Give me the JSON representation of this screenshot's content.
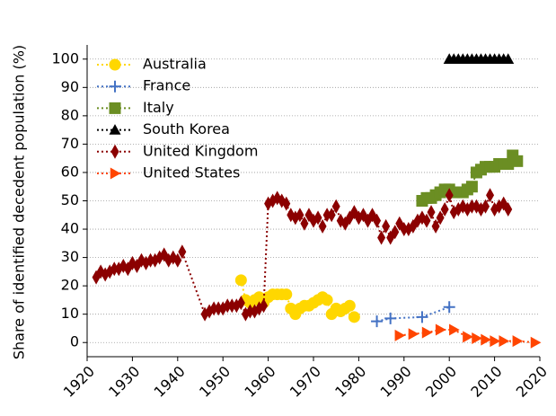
{
  "chart_data": {
    "type": "line",
    "y_label": "Share of identified decedent population (%)",
    "xlim": [
      1920,
      2020
    ],
    "ylim": [
      -5,
      105
    ],
    "xticks": [
      1920,
      1930,
      1940,
      1950,
      1960,
      1970,
      1980,
      1990,
      2000,
      2010,
      2020
    ],
    "yticks": [
      0,
      10,
      20,
      30,
      40,
      50,
      60,
      70,
      80,
      90,
      100
    ],
    "grid": true,
    "legend": "upper left",
    "series": [
      {
        "name": "Australia",
        "color": "#ffd700",
        "marker": "circle",
        "x": [
          1954,
          1955,
          1956,
          1957,
          1958,
          1959,
          1960,
          1961,
          1962,
          1963,
          1964,
          1965,
          1966,
          1967,
          1968,
          1969,
          1970,
          1971,
          1972,
          1973,
          1974,
          1975,
          1976,
          1977,
          1978,
          1979
        ],
        "values": [
          22,
          15,
          14,
          15,
          16,
          14,
          16,
          17,
          17,
          17,
          17,
          12,
          10,
          12,
          13,
          13,
          14,
          15,
          16,
          15,
          10,
          12,
          11,
          12,
          13,
          9
        ]
      },
      {
        "name": "France",
        "color": "#4472c4",
        "marker": "plus",
        "x": [
          1984,
          1987,
          1994,
          2000
        ],
        "values": [
          7.5,
          8.5,
          9,
          12.5
        ]
      },
      {
        "name": "Italy",
        "color": "#6b8e23",
        "marker": "square",
        "x": [
          1994,
          1995,
          1996,
          1997,
          1998,
          1999,
          2000,
          2001,
          2002,
          2003,
          2004,
          2005,
          2006,
          2007,
          2008,
          2009,
          2010,
          2011,
          2012,
          2013,
          2014,
          2015
        ],
        "values": [
          50,
          51,
          51,
          52,
          53,
          54,
          54,
          53,
          53,
          53,
          54,
          55,
          60,
          61,
          62,
          62,
          62,
          63,
          63,
          63,
          66,
          64
        ]
      },
      {
        "name": "South Korea",
        "color": "#000000",
        "marker": "triangle-up",
        "x": [
          2000,
          2001,
          2002,
          2003,
          2004,
          2005,
          2006,
          2007,
          2008,
          2009,
          2010,
          2011,
          2012,
          2013
        ],
        "values": [
          100,
          100,
          100,
          100,
          100,
          100,
          100,
          100,
          100,
          100,
          100,
          100,
          100,
          100
        ]
      },
      {
        "name": "United Kingdom",
        "color": "#8b0000",
        "marker": "thin-diamond",
        "x": [
          1922,
          1923,
          1924,
          1925,
          1926,
          1927,
          1928,
          1929,
          1930,
          1931,
          1932,
          1933,
          1934,
          1935,
          1936,
          1937,
          1938,
          1939,
          1940,
          1941,
          1946,
          1947,
          1948,
          1949,
          1950,
          1951,
          1952,
          1953,
          1954,
          1955,
          1956,
          1957,
          1958,
          1959,
          1960,
          1961,
          1962,
          1963,
          1964,
          1965,
          1966,
          1967,
          1968,
          1969,
          1970,
          1971,
          1972,
          1973,
          1974,
          1975,
          1976,
          1977,
          1978,
          1979,
          1980,
          1981,
          1982,
          1983,
          1984,
          1985,
          1986,
          1987,
          1988,
          1989,
          1990,
          1991,
          1992,
          1993,
          1994,
          1995,
          1996,
          1997,
          1998,
          1999,
          2000,
          2001,
          2002,
          2003,
          2004,
          2005,
          2006,
          2007,
          2008,
          2009,
          2010,
          2011,
          2012,
          2013
        ],
        "values": [
          23,
          25,
          24,
          25,
          26,
          26,
          27,
          26,
          28,
          27,
          29,
          28,
          29,
          29,
          30,
          31,
          29,
          30,
          29,
          32,
          10,
          11,
          12,
          12,
          12,
          13,
          13,
          13,
          14,
          10,
          11,
          11,
          12,
          13,
          49,
          50,
          51,
          50,
          49,
          45,
          44,
          45,
          42,
          45,
          43,
          44,
          41,
          45,
          45,
          48,
          43,
          42,
          44,
          46,
          44,
          45,
          43,
          45,
          43,
          37,
          41,
          37,
          39,
          42,
          40,
          40,
          41,
          43,
          44,
          43,
          46,
          41,
          44,
          47,
          52,
          46,
          47,
          48,
          47,
          48,
          48,
          47,
          48,
          52,
          47,
          48,
          49,
          47
        ]
      },
      {
        "name": "United States",
        "color": "#ff4500",
        "marker": "triangle-right",
        "x": [
          1989,
          1992,
          1995,
          1998,
          2001,
          2004,
          2006,
          2008,
          2010,
          2012,
          2015,
          2019
        ],
        "values": [
          2.5,
          3,
          3.5,
          4.5,
          4.5,
          2,
          1.5,
          1,
          0.5,
          0.5,
          0.5,
          0
        ]
      }
    ]
  }
}
